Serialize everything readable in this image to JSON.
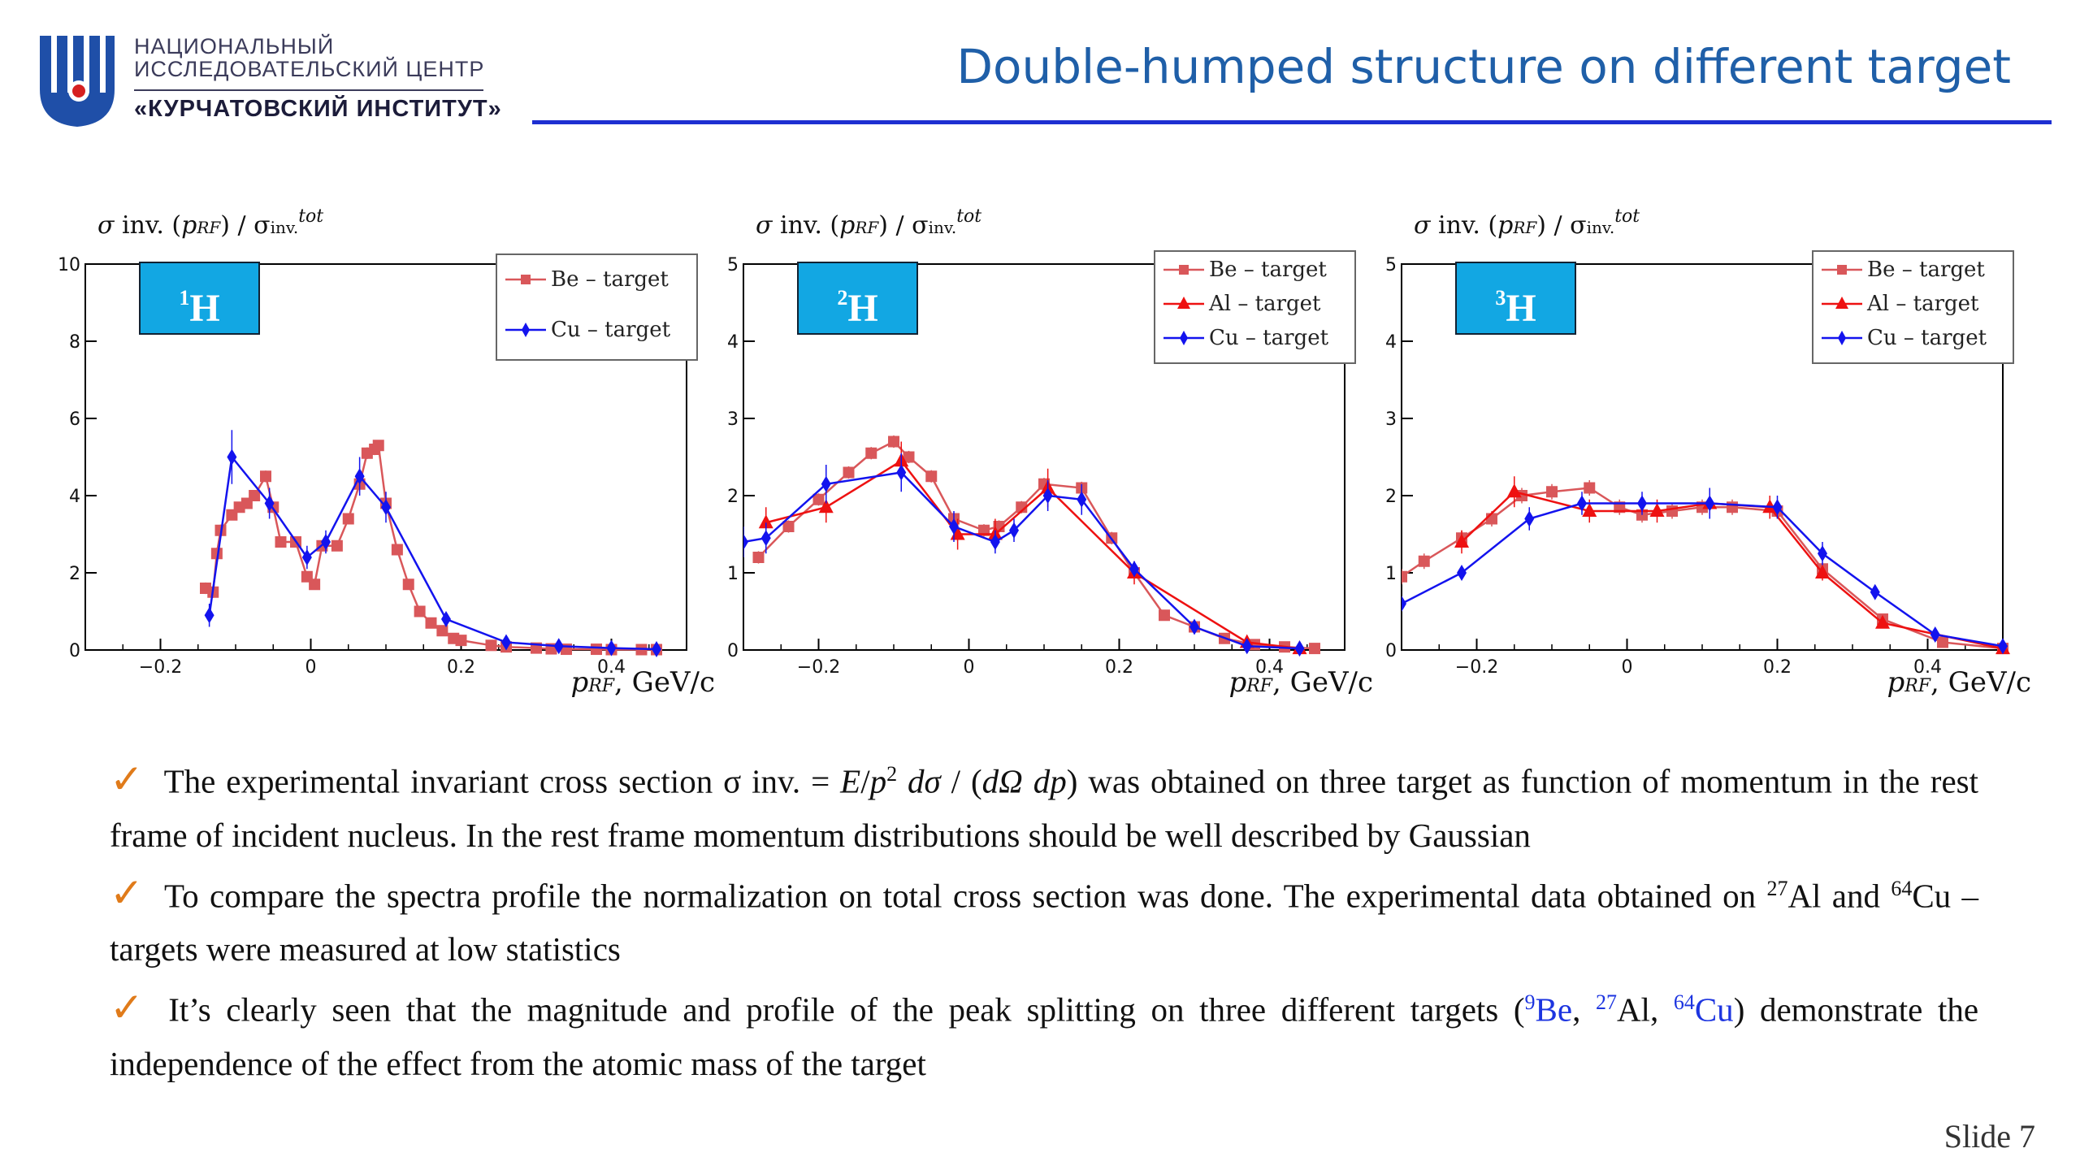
{
  "logo": {
    "line1": "НАЦИОНАЛЬНЫЙ",
    "line2": "ИССЛЕДОВАТЕЛЬСКИЙ ЦЕНТР",
    "line3": "«КУРЧАТОВСКИЙ ИНСТИТУТ»"
  },
  "title": "Double-humped structure on different target",
  "colors": {
    "title": "#1f5fa8",
    "rule": "#1d2fd1",
    "be": "#d9575a",
    "al": "#ee1111",
    "cu": "#1313ee",
    "box": "#12a7e3",
    "check": "#e07b1a"
  },
  "y_label": {
    "sigma": "σ",
    "main": " inv. (",
    "p": "p",
    "rf": "RF",
    "mid": ") / σ",
    "sub": "inv.",
    "sup": "tot"
  },
  "x_label": {
    "p": "p",
    "rf": "RF",
    "rest": ", GeV/c"
  },
  "chart_data": [
    {
      "type": "line",
      "nucleus": {
        "mass": "1",
        "symbol": "H"
      },
      "xlim": [
        -0.3,
        0.5
      ],
      "ylim": [
        0,
        10
      ],
      "xticks": [
        -0.2,
        0,
        0.2,
        0.4
      ],
      "xtick_labels": [
        "−0.2",
        "0",
        "0.2",
        "0.4"
      ],
      "yticks": [
        0,
        2,
        4,
        6,
        8,
        10
      ],
      "ytick_labels": [
        "0",
        "2",
        "4",
        "6",
        "8",
        "10"
      ],
      "legend_position": "top-right",
      "series": [
        {
          "name": "Be – target",
          "marker": "square",
          "color": "#d9575a",
          "points": [
            [
              -0.14,
              1.6
            ],
            [
              -0.13,
              1.5
            ],
            [
              -0.125,
              2.5
            ],
            [
              -0.12,
              3.1
            ],
            [
              -0.105,
              3.5
            ],
            [
              -0.095,
              3.7
            ],
            [
              -0.085,
              3.8
            ],
            [
              -0.075,
              4.0
            ],
            [
              -0.06,
              4.5
            ],
            [
              -0.05,
              3.7
            ],
            [
              -0.04,
              2.8
            ],
            [
              -0.02,
              2.8
            ],
            [
              -0.005,
              1.9
            ],
            [
              0.005,
              1.7
            ],
            [
              0.015,
              2.7
            ],
            [
              0.035,
              2.7
            ],
            [
              0.05,
              3.4
            ],
            [
              0.065,
              4.3
            ],
            [
              0.075,
              5.1
            ],
            [
              0.085,
              5.2
            ],
            [
              0.09,
              5.3
            ],
            [
              0.1,
              3.8
            ],
            [
              0.115,
              2.6
            ],
            [
              0.13,
              1.7
            ],
            [
              0.145,
              1.0
            ],
            [
              0.16,
              0.7
            ],
            [
              0.175,
              0.5
            ],
            [
              0.19,
              0.3
            ],
            [
              0.2,
              0.25
            ],
            [
              0.24,
              0.12
            ],
            [
              0.26,
              0.08
            ],
            [
              0.3,
              0.05
            ],
            [
              0.32,
              0.03
            ],
            [
              0.34,
              0.02
            ],
            [
              0.38,
              0.02
            ],
            [
              0.4,
              0.01
            ],
            [
              0.44,
              0.01
            ],
            [
              0.46,
              0.01
            ]
          ],
          "errors": [
            0.15,
            0.15,
            0.15,
            0.15,
            0.1,
            0.1,
            0.1,
            0.1,
            0.15,
            0.15,
            0.1,
            0.1,
            0.1,
            0.1,
            0.1,
            0.1,
            0.1,
            0.15,
            0.15,
            0.15,
            0.1,
            0.1,
            0.1,
            0.1,
            0.08,
            0.05,
            0.05,
            0.04,
            0.03,
            0.02,
            0.02,
            0.02,
            0.01,
            0.01,
            0.01,
            0.01,
            0.01,
            0.01
          ]
        },
        {
          "name": "Cu – target",
          "marker": "diamond",
          "color": "#1313ee",
          "points": [
            [
              -0.135,
              0.9
            ],
            [
              -0.105,
              5.0
            ],
            [
              -0.055,
              3.8
            ],
            [
              -0.005,
              2.4
            ],
            [
              0.02,
              2.8
            ],
            [
              0.065,
              4.5
            ],
            [
              0.1,
              3.7
            ],
            [
              0.18,
              0.8
            ],
            [
              0.26,
              0.2
            ],
            [
              0.33,
              0.1
            ],
            [
              0.4,
              0.05
            ],
            [
              0.46,
              0.02
            ]
          ],
          "errors": [
            0.3,
            0.7,
            0.4,
            0.3,
            0.3,
            0.5,
            0.4,
            0.15,
            0.08,
            0.05,
            0.04,
            0.03
          ]
        }
      ]
    },
    {
      "type": "line",
      "nucleus": {
        "mass": "2",
        "symbol": "H"
      },
      "xlim": [
        -0.3,
        0.5
      ],
      "ylim": [
        0,
        5
      ],
      "xticks": [
        -0.2,
        0,
        0.2,
        0.4
      ],
      "xtick_labels": [
        "−0.2",
        "0",
        "0.2",
        "0.4"
      ],
      "yticks": [
        0,
        1,
        2,
        3,
        4,
        5
      ],
      "ytick_labels": [
        "0",
        "1",
        "2",
        "3",
        "4",
        "5"
      ],
      "legend_position": "top-right",
      "series": [
        {
          "name": "Be – target",
          "marker": "square",
          "color": "#d9575a",
          "points": [
            [
              -0.28,
              1.2
            ],
            [
              -0.24,
              1.6
            ],
            [
              -0.2,
              1.95
            ],
            [
              -0.16,
              2.3
            ],
            [
              -0.13,
              2.55
            ],
            [
              -0.1,
              2.7
            ],
            [
              -0.08,
              2.5
            ],
            [
              -0.05,
              2.25
            ],
            [
              -0.02,
              1.7
            ],
            [
              0.02,
              1.55
            ],
            [
              0.04,
              1.6
            ],
            [
              0.07,
              1.85
            ],
            [
              0.1,
              2.15
            ],
            [
              0.15,
              2.1
            ],
            [
              0.19,
              1.45
            ],
            [
              0.22,
              1.0
            ],
            [
              0.26,
              0.45
            ],
            [
              0.3,
              0.3
            ],
            [
              0.34,
              0.15
            ],
            [
              0.38,
              0.07
            ],
            [
              0.42,
              0.04
            ],
            [
              0.46,
              0.02
            ]
          ],
          "errors": [
            0.08,
            0.08,
            0.08,
            0.08,
            0.08,
            0.08,
            0.08,
            0.08,
            0.08,
            0.08,
            0.08,
            0.08,
            0.08,
            0.08,
            0.08,
            0.06,
            0.05,
            0.04,
            0.03,
            0.02,
            0.02,
            0.02
          ]
        },
        {
          "name": "Al – target",
          "marker": "triangle",
          "color": "#ee1111",
          "points": [
            [
              -0.27,
              1.65
            ],
            [
              -0.19,
              1.85
            ],
            [
              -0.09,
              2.45
            ],
            [
              -0.015,
              1.5
            ],
            [
              0.035,
              1.5
            ],
            [
              0.105,
              2.1
            ],
            [
              0.22,
              1.0
            ],
            [
              0.37,
              0.1
            ],
            [
              0.44,
              0.02
            ]
          ],
          "errors": [
            0.2,
            0.2,
            0.25,
            0.2,
            0.2,
            0.25,
            0.15,
            0.05,
            0.02
          ]
        },
        {
          "name": "Cu – target",
          "marker": "diamond",
          "color": "#1313ee",
          "points": [
            [
              -0.3,
              1.4
            ],
            [
              -0.27,
              1.45
            ],
            [
              -0.19,
              2.15
            ],
            [
              -0.09,
              2.3
            ],
            [
              -0.02,
              1.6
            ],
            [
              0.035,
              1.4
            ],
            [
              0.06,
              1.55
            ],
            [
              0.105,
              2.0
            ],
            [
              0.15,
              1.95
            ],
            [
              0.22,
              1.05
            ],
            [
              0.3,
              0.3
            ],
            [
              0.37,
              0.05
            ],
            [
              0.44,
              0.02
            ]
          ],
          "errors": [
            0.2,
            0.2,
            0.25,
            0.25,
            0.2,
            0.15,
            0.15,
            0.2,
            0.2,
            0.1,
            0.05,
            0.03,
            0.02
          ]
        }
      ]
    },
    {
      "type": "line",
      "nucleus": {
        "mass": "3",
        "symbol": "H"
      },
      "xlim": [
        -0.3,
        0.5
      ],
      "ylim": [
        0,
        5
      ],
      "xticks": [
        -0.2,
        0,
        0.2,
        0.4
      ],
      "xtick_labels": [
        "−0.2",
        "0",
        "0.2",
        "0.4"
      ],
      "yticks": [
        0,
        1,
        2,
        3,
        4,
        5
      ],
      "ytick_labels": [
        "0",
        "1",
        "2",
        "3",
        "4",
        "5"
      ],
      "legend_position": "top-right",
      "series": [
        {
          "name": "Be – target",
          "marker": "square",
          "color": "#d9575a",
          "points": [
            [
              -0.3,
              0.95
            ],
            [
              -0.27,
              1.15
            ],
            [
              -0.22,
              1.45
            ],
            [
              -0.18,
              1.7
            ],
            [
              -0.14,
              2.0
            ],
            [
              -0.1,
              2.05
            ],
            [
              -0.05,
              2.1
            ],
            [
              -0.01,
              1.85
            ],
            [
              0.02,
              1.75
            ],
            [
              0.06,
              1.8
            ],
            [
              0.1,
              1.85
            ],
            [
              0.14,
              1.85
            ],
            [
              0.2,
              1.8
            ],
            [
              0.26,
              1.05
            ],
            [
              0.34,
              0.4
            ],
            [
              0.42,
              0.1
            ],
            [
              0.5,
              0.02
            ]
          ],
          "errors": [
            0.1,
            0.1,
            0.1,
            0.1,
            0.1,
            0.1,
            0.1,
            0.1,
            0.1,
            0.1,
            0.1,
            0.1,
            0.1,
            0.08,
            0.05,
            0.03,
            0.02
          ]
        },
        {
          "name": "Al – target",
          "marker": "triangle",
          "color": "#ee1111",
          "points": [
            [
              -0.22,
              1.4
            ],
            [
              -0.15,
              2.05
            ],
            [
              -0.05,
              1.8
            ],
            [
              0.04,
              1.8
            ],
            [
              0.11,
              1.9
            ],
            [
              0.19,
              1.85
            ],
            [
              0.26,
              1.0
            ],
            [
              0.34,
              0.35
            ],
            [
              0.5,
              0.02
            ]
          ],
          "errors": [
            0.15,
            0.2,
            0.15,
            0.15,
            0.2,
            0.15,
            0.1,
            0.05,
            0.02
          ]
        },
        {
          "name": "Cu – target",
          "marker": "diamond",
          "color": "#1313ee",
          "points": [
            [
              -0.3,
              0.6
            ],
            [
              -0.22,
              1.0
            ],
            [
              -0.13,
              1.7
            ],
            [
              -0.06,
              1.9
            ],
            [
              0.02,
              1.9
            ],
            [
              0.11,
              1.9
            ],
            [
              0.2,
              1.85
            ],
            [
              0.26,
              1.25
            ],
            [
              0.33,
              0.75
            ],
            [
              0.41,
              0.2
            ],
            [
              0.5,
              0.05
            ]
          ],
          "errors": [
            0.05,
            0.05,
            0.15,
            0.15,
            0.15,
            0.2,
            0.15,
            0.15,
            0.08,
            0.05,
            0.03
          ]
        }
      ]
    }
  ],
  "text": {
    "b1": {
      "a": "The experimental invariant cross section σ inv. = ",
      "f1": "E",
      "f2": "/",
      "f3": "p",
      "f4": "2",
      "f5": " dσ",
      "f6": " / (",
      "f7": "dΩ dp",
      "f8": ")",
      "b": " was obtained on three target as function of momentum in the rest frame of incident nucleus. In the rest frame momentum distributions should be well described by Gaussian"
    },
    "b2": {
      "a": "To compare the spectra profile the normalization on total cross section was done. The experimental data obtained on ",
      "sup1": "27",
      "al": "Al",
      "b": " and ",
      "sup2": "64",
      "cu": "Cu",
      "c": " – targets were measured at low statistics"
    },
    "b3": {
      "a": "It’s clearly seen that the magnitude and profile of the peak splitting on three different targets (",
      "sup1": "9",
      "be": "Be",
      "sep1": ", ",
      "sup2": "27",
      "al": "Al",
      "sep2": ", ",
      "sup3": "64",
      "cu": "Cu",
      "b": ") demonstrate the independence of the effect from the atomic mass of the target"
    },
    "check": "✓"
  },
  "slide_number": "Slide 7"
}
